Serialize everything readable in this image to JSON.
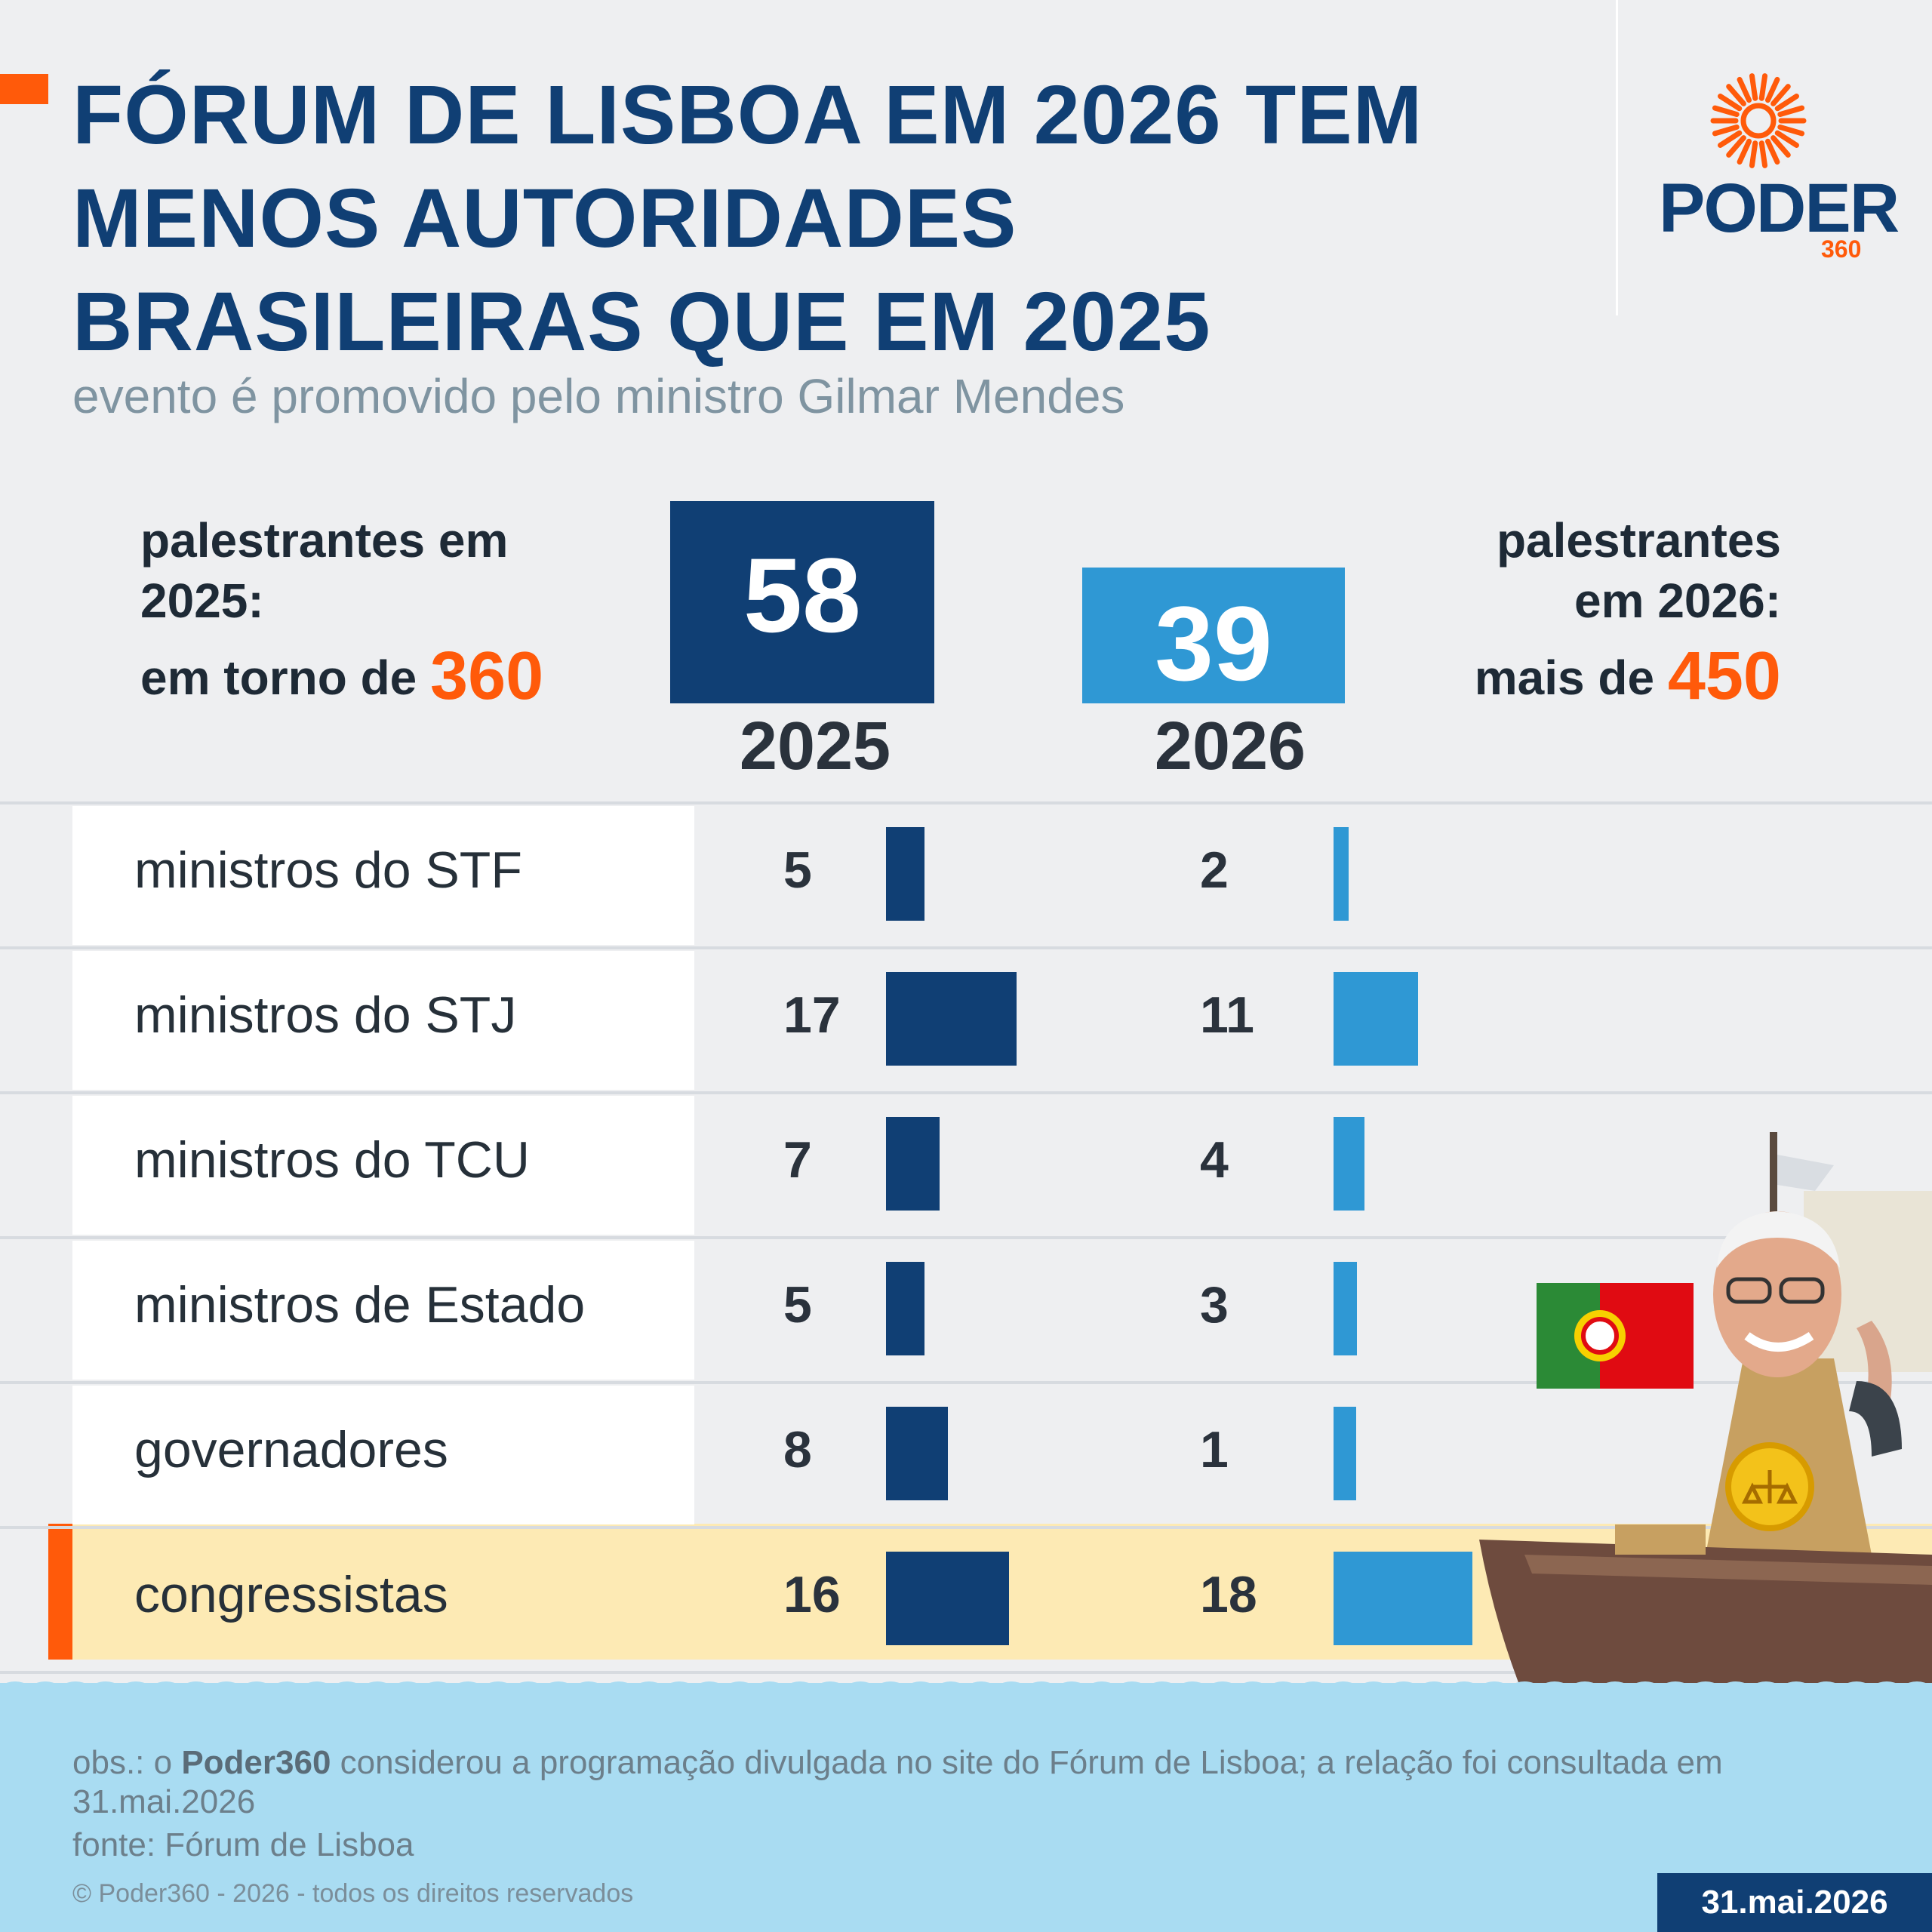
{
  "header": {
    "title_lines": [
      "FÓRUM DE LISBOA EM 2026 TEM",
      "MENOS AUTORIDADES",
      "BRASILEIRAS QUE EM 2025"
    ],
    "subtitle": "evento é promovido pelo ministro Gilmar Mendes",
    "logo_word": "PODER",
    "logo_number": "360"
  },
  "totals": {
    "left": {
      "line1": "palestrantes em",
      "line2": "2025:",
      "prefix": "em torno de",
      "value": "360"
    },
    "right": {
      "line1": "palestrantes",
      "line2": "em 2026:",
      "prefix": "mais de",
      "value": "450"
    }
  },
  "chart_data": {
    "type": "bar",
    "title": "FÓRUM DE LISBOA EM 2026 TEM MENOS AUTORIDADES BRASILEIRAS QUE EM 2025",
    "subtitle": "evento é promovido pelo ministro Gilmar Mendes",
    "totals": {
      "2025": 58,
      "2026": 39
    },
    "categories": [
      "ministros do STF",
      "ministros do STJ",
      "ministros do TCU",
      "ministros de Estado",
      "governadores",
      "congressistas"
    ],
    "series": [
      {
        "name": "2025",
        "values": [
          5,
          17,
          7,
          5,
          8,
          16
        ]
      },
      {
        "name": "2026",
        "values": [
          2,
          11,
          4,
          3,
          1,
          18
        ]
      }
    ],
    "highlighted_category": "congressistas"
  },
  "colors": {
    "series_2025": "#103f74",
    "series_2026": "#2f98d4",
    "accent": "#ff5a0a",
    "highlight_row": "#fdeab4"
  },
  "footer": {
    "note_prefix": "obs.: o ",
    "note_brand": "Poder360",
    "note_rest": " considerou a programação divulgada no site do Fórum de Lisboa; a relação foi consultada em 31.mai.2026",
    "source": "fonte: Fórum de Lisboa",
    "copyright": "© Poder360 - 2026 - todos os direitos reservados",
    "date": "31.mai.2026"
  }
}
